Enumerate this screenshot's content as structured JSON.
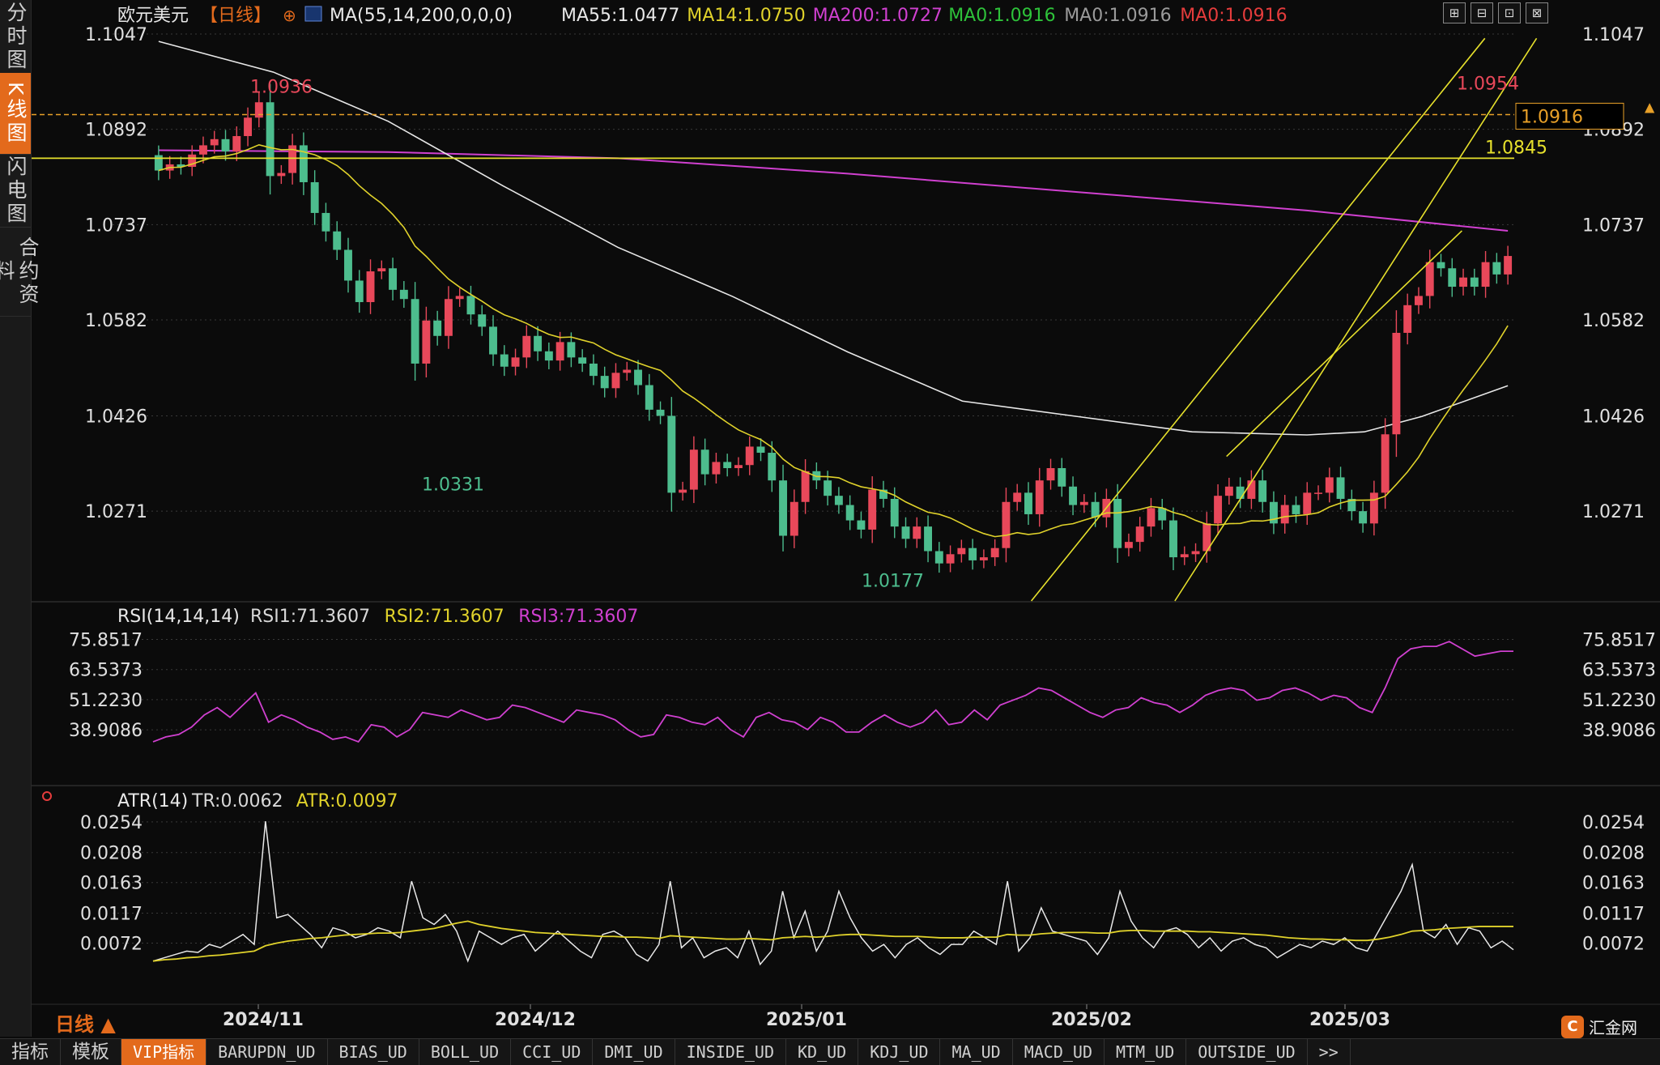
{
  "left_tabs": [
    {
      "label": "分时图",
      "active": false
    },
    {
      "label": "K线图",
      "active": true
    },
    {
      "label": "闪电图",
      "active": false
    },
    {
      "label": "合约资料",
      "active": false
    }
  ],
  "header": {
    "symbol": "欧元美元",
    "period": "【日线】",
    "indicator": "MA(55,14,200,0,0,0)",
    "ma_items": [
      {
        "text": "MA55:1.0477",
        "color": "#e8e8e8"
      },
      {
        "text": "MA14:1.0750",
        "color": "#e0d22b"
      },
      {
        "text": "MA200:1.0727",
        "color": "#d040d0"
      },
      {
        "text": "MA0:1.0916",
        "color": "#2ec23a"
      },
      {
        "text": "MA0:1.0916",
        "color": "#9a9a9a"
      },
      {
        "text": "MA0:1.0916",
        "color": "#e53c3c"
      }
    ]
  },
  "toolbar": [
    "⊞",
    "⊟",
    "⊡",
    "⊠"
  ],
  "price_axis": {
    "ticks": [
      "1.1047",
      "1.0892",
      "1.0737",
      "1.0582",
      "1.0426",
      "1.0271"
    ]
  },
  "price_annotations": {
    "high1": "1.0936",
    "low1": "1.0331",
    "low2": "1.0177",
    "high2": "1.0954",
    "hline_label": "1.0845",
    "current": "1.0916"
  },
  "rsi": {
    "title": "RSI(14,14,14)",
    "items": [
      {
        "text": "RSI1:71.3607",
        "color": "#d8d8d8"
      },
      {
        "text": "RSI2:71.3607",
        "color": "#e0d22b"
      },
      {
        "text": "RSI3:71.3607",
        "color": "#d040d0"
      }
    ],
    "ticks": [
      "75.8517",
      "63.5373",
      "51.2230",
      "38.9086"
    ]
  },
  "atr": {
    "title": "ATR(14)",
    "items": [
      {
        "text": "TR:0.0062",
        "color": "#d8d8d8"
      },
      {
        "text": "ATR:0.0097",
        "color": "#e0d22b"
      }
    ],
    "ticks": [
      "0.0254",
      "0.0208",
      "0.0163",
      "0.0117",
      "0.0072"
    ]
  },
  "period_selector": "日线 ▲",
  "date_labels": [
    "2024/11",
    "2024/12",
    "2025/01",
    "2025/02",
    "2025/03"
  ],
  "bottom_tabs": [
    {
      "label": "指标",
      "big": true,
      "active": false
    },
    {
      "label": "模板",
      "big": true,
      "active": false
    },
    {
      "label": "VIP指标",
      "big": false,
      "active": true
    },
    {
      "label": "BARUPDN_UD",
      "big": false,
      "active": false
    },
    {
      "label": "BIAS_UD",
      "big": false,
      "active": false
    },
    {
      "label": "BOLL_UD",
      "big": false,
      "active": false
    },
    {
      "label": "CCI_UD",
      "big": false,
      "active": false
    },
    {
      "label": "DMI_UD",
      "big": false,
      "active": false
    },
    {
      "label": "INSIDE_UD",
      "big": false,
      "active": false
    },
    {
      "label": "KD_UD",
      "big": false,
      "active": false
    },
    {
      "label": "KDJ_UD",
      "big": false,
      "active": false
    },
    {
      "label": "MA_UD",
      "big": false,
      "active": false
    },
    {
      "label": "MACD_UD",
      "big": false,
      "active": false
    },
    {
      "label": "MTM_UD",
      "big": false,
      "active": false
    },
    {
      "label": "OUTSIDE_UD",
      "big": false,
      "active": false
    },
    {
      "label": ">>",
      "big": false,
      "active": false
    }
  ],
  "logo": "汇金网",
  "colors": {
    "up": "#e8485a",
    "down": "#4dbd8e",
    "ma55": "#e8e8e8",
    "ma14": "#e0d22b",
    "ma200": "#d040d0",
    "grid": "#3a3a3a",
    "channel": "#e6e02c"
  },
  "chart_data": {
    "type": "candlestick",
    "price_range": [
      1.0125,
      1.1047
    ],
    "price_start": 1.085,
    "bar_changes": [
      -0.0025,
      0.001,
      -0.0004,
      0.002,
      0.0015,
      0.001,
      -0.002,
      0.0025,
      0.003,
      0.0025,
      -0.012,
      0.0005,
      0.0045,
      -0.006,
      -0.005,
      -0.003,
      -0.003,
      -0.005,
      -0.0035,
      0.005,
      0.0005,
      -0.0035,
      -0.0015,
      -0.0105,
      0.007,
      -0.0025,
      0.006,
      0.0005,
      -0.003,
      -0.002,
      -0.0045,
      -0.002,
      0.0015,
      0.0035,
      -0.0025,
      -0.0015,
      0.003,
      -0.0025,
      -0.001,
      -0.002,
      -0.002,
      0.0025,
      0.0005,
      -0.0025,
      -0.004,
      -0.001,
      -0.0125,
      0.0005,
      0.0065,
      -0.004,
      0.002,
      -0.001,
      0.0005,
      0.003,
      -0.001,
      -0.0045,
      -0.009,
      0.0055,
      0.005,
      -0.0015,
      -0.0025,
      -0.0015,
      -0.0025,
      -0.0015,
      0.0065,
      -0.0015,
      -0.0045,
      -0.002,
      0.002,
      -0.004,
      -0.002,
      0.0015,
      0.001,
      -0.002,
      0.0005,
      0.0015,
      0.0075,
      0.0015,
      -0.0035,
      0.0055,
      0.002,
      -0.003,
      -0.003,
      0.0005,
      -0.0025,
      0.003,
      -0.008,
      0.001,
      0.0025,
      0.003,
      -0.002,
      -0.006,
      0.0005,
      0.0005,
      0.0045,
      0.0045,
      0.0015,
      -0.002,
      0.003,
      -0.0035,
      -0.0035,
      0.003,
      -0.0015,
      0.0035,
      0.0,
      0.0025,
      -0.0035,
      -0.002,
      -0.002,
      0.005,
      0.0095,
      0.0165,
      0.0045,
      0.0015,
      0.0055,
      -0.001,
      -0.003,
      0.0015,
      -0.0015,
      0.004,
      -0.002,
      0.003
    ],
    "ma55": [
      [
        0,
        1.1035
      ],
      [
        20,
        1.0985
      ],
      [
        40,
        1.0905
      ],
      [
        60,
        1.08
      ],
      [
        80,
        1.07
      ],
      [
        100,
        1.062
      ],
      [
        120,
        1.053
      ],
      [
        140,
        1.045
      ],
      [
        160,
        1.0425
      ],
      [
        180,
        1.04
      ],
      [
        200,
        1.0395
      ],
      [
        210,
        1.04
      ],
      [
        220,
        1.0425
      ],
      [
        235,
        1.0475
      ]
    ],
    "ma200": [
      [
        0,
        1.0858
      ],
      [
        40,
        1.0855
      ],
      [
        80,
        1.0845
      ],
      [
        120,
        1.082
      ],
      [
        160,
        1.079
      ],
      [
        200,
        1.076
      ],
      [
        235,
        1.0727
      ]
    ],
    "channel_lines": [
      {
        "from": [
          1.0125,
          152
        ],
        "to": [
          1.104,
          231
        ]
      },
      {
        "from": [
          1.0125,
          177
        ],
        "to": [
          1.104,
          240
        ]
      },
      {
        "from": [
          1.036,
          186
        ],
        "to": [
          1.0727,
          227
        ]
      }
    ],
    "hlines": [
      {
        "value": 1.0845,
        "style": "solid"
      },
      {
        "value": 1.0916,
        "style": "dashed"
      }
    ],
    "rsi_range": [
      32,
      78
    ],
    "rsi": [
      34,
      36,
      37,
      40,
      45,
      48,
      44,
      49,
      54,
      42,
      45,
      43,
      40,
      38,
      35,
      36,
      34,
      41,
      40,
      36,
      39,
      46,
      45,
      44,
      47,
      45,
      43,
      44,
      49,
      48,
      46,
      44,
      42,
      47,
      46,
      45,
      43,
      39,
      36,
      37,
      45,
      44,
      42,
      41,
      44,
      39,
      36,
      44,
      46,
      43,
      42,
      39,
      44,
      42,
      38,
      38,
      42,
      45,
      42,
      40,
      42,
      47,
      41,
      42,
      47,
      43,
      49,
      51,
      53,
      56,
      55,
      52,
      49,
      46,
      44,
      47,
      48,
      52,
      50,
      49,
      46,
      49,
      53,
      55,
      56,
      55,
      51,
      52,
      55,
      56,
      54,
      51,
      53,
      52,
      48,
      46,
      56,
      68,
      72,
      73,
      73,
      75,
      72,
      69,
      70,
      71,
      71
    ],
    "atr_range": [
      0.003,
      0.026
    ],
    "tr": [
      0.0045,
      0.005,
      0.0055,
      0.006,
      0.0058,
      0.007,
      0.0065,
      0.0075,
      0.0085,
      0.007,
      0.0255,
      0.011,
      0.0115,
      0.01,
      0.0085,
      0.0065,
      0.0095,
      0.009,
      0.008,
      0.0085,
      0.0095,
      0.009,
      0.008,
      0.0165,
      0.011,
      0.01,
      0.0115,
      0.009,
      0.0045,
      0.009,
      0.008,
      0.007,
      0.008,
      0.0085,
      0.006,
      0.0075,
      0.009,
      0.0075,
      0.006,
      0.005,
      0.0085,
      0.009,
      0.008,
      0.0055,
      0.0045,
      0.007,
      0.0165,
      0.0065,
      0.008,
      0.005,
      0.006,
      0.0065,
      0.005,
      0.009,
      0.004,
      0.006,
      0.015,
      0.008,
      0.012,
      0.006,
      0.009,
      0.015,
      0.011,
      0.008,
      0.006,
      0.007,
      0.005,
      0.007,
      0.008,
      0.0065,
      0.0055,
      0.007,
      0.007,
      0.009,
      0.008,
      0.007,
      0.0165,
      0.006,
      0.008,
      0.0125,
      0.009,
      0.0085,
      0.008,
      0.0075,
      0.0055,
      0.008,
      0.015,
      0.0105,
      0.008,
      0.0065,
      0.009,
      0.0095,
      0.0085,
      0.0065,
      0.008,
      0.006,
      0.0075,
      0.008,
      0.007,
      0.0065,
      0.005,
      0.006,
      0.007,
      0.0065,
      0.0075,
      0.007,
      0.008,
      0.0065,
      0.006,
      0.009,
      0.012,
      0.015,
      0.019,
      0.009,
      0.008,
      0.01,
      0.007,
      0.0095,
      0.009,
      0.0065,
      0.0075,
      0.0062
    ],
    "atr": [
      0.0045,
      0.0047,
      0.0048,
      0.005,
      0.0051,
      0.0053,
      0.0054,
      0.0056,
      0.0058,
      0.006,
      0.0068,
      0.0072,
      0.0075,
      0.0077,
      0.0079,
      0.008,
      0.0082,
      0.0084,
      0.0085,
      0.0086,
      0.0087,
      0.0087,
      0.0088,
      0.009,
      0.0092,
      0.0094,
      0.0098,
      0.0102,
      0.0105,
      0.01,
      0.0097,
      0.0094,
      0.0092,
      0.009,
      0.0088,
      0.0087,
      0.0086,
      0.0085,
      0.0084,
      0.0083,
      0.0082,
      0.0082,
      0.0081,
      0.0081,
      0.008,
      0.0079,
      0.0083,
      0.0082,
      0.0081,
      0.008,
      0.0079,
      0.0078,
      0.0078,
      0.0079,
      0.0078,
      0.0077,
      0.008,
      0.0081,
      0.0082,
      0.0081,
      0.0082,
      0.0084,
      0.0085,
      0.0085,
      0.0084,
      0.0083,
      0.0082,
      0.0082,
      0.0082,
      0.0081,
      0.008,
      0.008,
      0.008,
      0.0081,
      0.0081,
      0.0081,
      0.0085,
      0.0084,
      0.0084,
      0.0086,
      0.0087,
      0.0088,
      0.0088,
      0.0088,
      0.0087,
      0.0087,
      0.009,
      0.0091,
      0.0091,
      0.009,
      0.009,
      0.009,
      0.009,
      0.0089,
      0.0089,
      0.0088,
      0.0087,
      0.0086,
      0.0085,
      0.0084,
      0.0082,
      0.008,
      0.0079,
      0.0078,
      0.0078,
      0.0077,
      0.0077,
      0.0076,
      0.0076,
      0.0078,
      0.0081,
      0.0085,
      0.009,
      0.0091,
      0.0092,
      0.0094,
      0.0095,
      0.0096,
      0.0097,
      0.0097,
      0.0097,
      0.0097
    ]
  }
}
